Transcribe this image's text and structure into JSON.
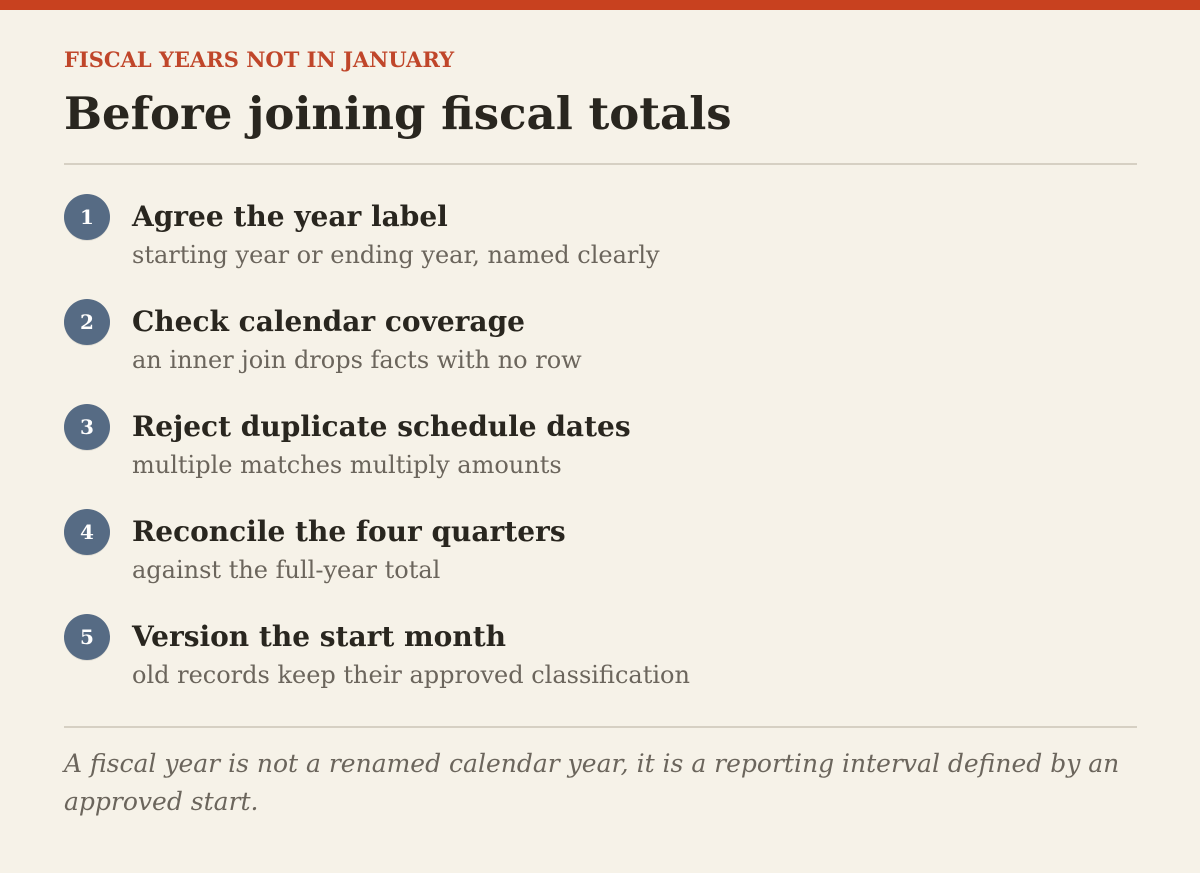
{
  "colors": {
    "accent": "#c8411f",
    "eyebrow": "#c0462a",
    "badge": "#566b84",
    "background": "#f6f2e8",
    "title_text": "#29261f",
    "muted_text": "#6b655c",
    "rule": "#d6d0c3"
  },
  "header": {
    "eyebrow": "FISCAL YEARS NOT IN JANUARY",
    "title": "Before joining fiscal totals"
  },
  "steps": [
    {
      "number": "1",
      "title": "Agree the year label",
      "subtitle": "starting year or ending year, named clearly"
    },
    {
      "number": "2",
      "title": "Check calendar coverage",
      "subtitle": "an inner join drops facts with no row"
    },
    {
      "number": "3",
      "title": "Reject duplicate schedule dates",
      "subtitle": "multiple matches multiply amounts"
    },
    {
      "number": "4",
      "title": "Reconcile the four quarters",
      "subtitle": "against the full-year total"
    },
    {
      "number": "5",
      "title": "Version the start month",
      "subtitle": "old records keep their approved classification"
    }
  ],
  "footer": {
    "note": "A fiscal year is not a renamed calendar year, it is a reporting interval defined by an approved start."
  }
}
